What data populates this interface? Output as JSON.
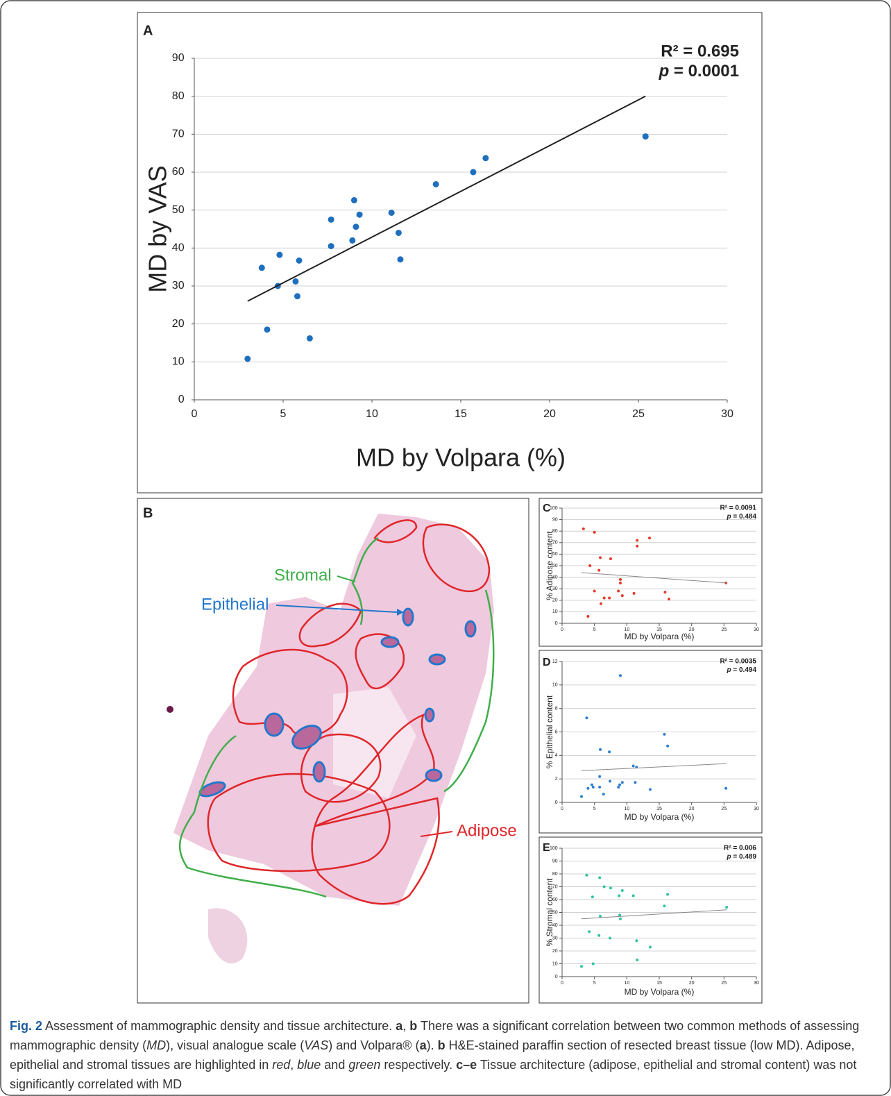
{
  "chart_data": [
    {
      "type": "scatter",
      "panel": "A",
      "x_label": "MD by Volpara (%)",
      "y_label": "MD by VAS",
      "stats": {
        "r2": "R² = 0.695",
        "p_label": "p",
        "p_value": " = 0.0001"
      },
      "color": "#1f6fbf",
      "x": [
        3.0,
        3.8,
        4.1,
        4.7,
        4.8,
        5.7,
        5.8,
        5.9,
        6.5,
        7.7,
        7.7,
        8.9,
        9.0,
        9.1,
        9.3,
        11.1,
        11.5,
        11.6,
        13.6,
        15.7,
        16.4,
        25.4
      ],
      "values": [
        10.8,
        34.8,
        18.5,
        30,
        38.2,
        31.2,
        27.3,
        36.7,
        16.2,
        47.5,
        40.5,
        42,
        52.6,
        45.6,
        48.8,
        49.3,
        44,
        37,
        56.8,
        60,
        63.7,
        69.4
      ],
      "trendline": {
        "x": [
          3.0,
          25.4
        ],
        "y": [
          26,
          80
        ]
      },
      "xlim": [
        0,
        30
      ],
      "xticks": [
        0,
        5,
        10,
        15,
        20,
        25,
        30
      ],
      "ylim": [
        0,
        90
      ],
      "yticks": [
        0,
        10,
        20,
        30,
        40,
        50,
        60,
        70,
        80,
        90
      ],
      "grid": true
    },
    {
      "type": "scatter",
      "panel": "C",
      "x_label": "MD by Volpara (%)",
      "y_label": "% Adipose content",
      "stats": {
        "r2": "R² = 0.0091",
        "p_label": "p",
        "p_value": " = 0.484"
      },
      "color": "#e8392a",
      "x": [
        3.3,
        4.0,
        4.3,
        5.0,
        5.0,
        5.7,
        5.9,
        6.0,
        6.5,
        7.3,
        7.5,
        8.7,
        9.0,
        9.0,
        9.3,
        11.1,
        11.6,
        11.6,
        13.5,
        15.9,
        16.5,
        25.3
      ],
      "values": [
        82,
        6,
        50,
        79,
        28,
        46,
        57,
        17,
        22,
        22,
        56,
        28,
        35,
        38,
        24,
        26,
        72,
        67,
        74,
        27,
        21,
        35
      ],
      "trendline": {
        "x": [
          3.0,
          25.4
        ],
        "y": [
          44,
          35
        ]
      },
      "xlim": [
        0,
        30
      ],
      "xticks": [
        0,
        5,
        10,
        15,
        20,
        25,
        30
      ],
      "ylim": [
        0,
        100
      ],
      "yticks": [
        0,
        10,
        20,
        30,
        40,
        50,
        60,
        70,
        80,
        90,
        100
      ],
      "grid": true
    },
    {
      "type": "scatter",
      "panel": "D",
      "x_label": "MD by Volpara (%)",
      "y_label": "% Epithelial content",
      "stats": {
        "r2": "R² = 0.0035",
        "p_label": "p",
        "p_value": " = 0.494"
      },
      "color": "#2f7fd0",
      "x": [
        3.0,
        3.8,
        4.0,
        4.6,
        4.8,
        5.8,
        5.9,
        5.8,
        6.4,
        7.3,
        7.4,
        8.7,
        8.9,
        9.0,
        9.3,
        11.0,
        11.3,
        11.5,
        13.6,
        15.8,
        16.3,
        25.3
      ],
      "values": [
        0.5,
        7.2,
        1.2,
        1.5,
        1.3,
        2.2,
        4.5,
        1.3,
        0.7,
        4.3,
        1.8,
        1.3,
        1.5,
        10.8,
        1.7,
        3.1,
        1.7,
        3.0,
        1.1,
        5.8,
        4.8,
        1.2
      ],
      "trendline": {
        "x": [
          3.0,
          25.4
        ],
        "y": [
          2.7,
          3.3
        ]
      },
      "xlim": [
        0,
        30
      ],
      "xticks": [
        0,
        5,
        10,
        15,
        20,
        25,
        30
      ],
      "ylim": [
        0,
        12
      ],
      "yticks": [
        0,
        2,
        4,
        6,
        8,
        10,
        12
      ],
      "grid": true
    },
    {
      "type": "scatter",
      "panel": "E",
      "x_label": "MD by Volpara (%)",
      "y_label": "% Stromal content",
      "stats": {
        "r2": "R² = 0.006",
        "p_label": "p",
        "p_value": " = 0.489"
      },
      "color": "#2ec4a0",
      "x": [
        3.0,
        3.8,
        4.2,
        4.7,
        4.8,
        5.7,
        5.8,
        5.9,
        6.5,
        7.4,
        7.5,
        8.8,
        8.9,
        9.0,
        9.3,
        11.0,
        11.5,
        11.6,
        13.6,
        15.8,
        16.3,
        25.4
      ],
      "values": [
        8,
        79,
        35,
        62,
        10,
        32,
        77,
        47,
        70,
        30,
        69,
        63,
        48,
        45,
        67,
        63,
        28,
        13,
        23,
        55,
        64,
        54
      ],
      "trendline": {
        "x": [
          3.0,
          25.4
        ],
        "y": [
          45,
          52
        ]
      },
      "xlim": [
        0,
        30
      ],
      "xticks": [
        0,
        5,
        10,
        15,
        20,
        25,
        30
      ],
      "ylim": [
        0,
        100
      ],
      "yticks": [
        0,
        10,
        20,
        30,
        40,
        50,
        60,
        70,
        80,
        90,
        100
      ],
      "grid": true
    }
  ],
  "histology": {
    "panel": "B",
    "labels": {
      "stromal": "Stromal",
      "epithelial": "Epithelial",
      "adipose": "Adipose"
    }
  },
  "caption": {
    "runs": [
      "Fig. 2",
      " Assessment of mammographic density and tissue architecture. ",
      "a",
      ", ",
      "b",
      " There was a significant correlation between two common methods of assessing mammographic density (",
      "MD",
      "), visual analogue scale (",
      "VAS",
      ") and Volpara® (",
      "a",
      "). ",
      "b",
      " H&E-stained paraffin section of resected breast tissue (low MD). Adipose, epithelial and stromal tissues are highlighted in ",
      "red",
      ", ",
      "blue",
      " and ",
      "green",
      " respectively. ",
      "c–e",
      " Tissue architecture (adipose, epithelial and stromal content) was not significantly correlated with MD"
    ]
  }
}
